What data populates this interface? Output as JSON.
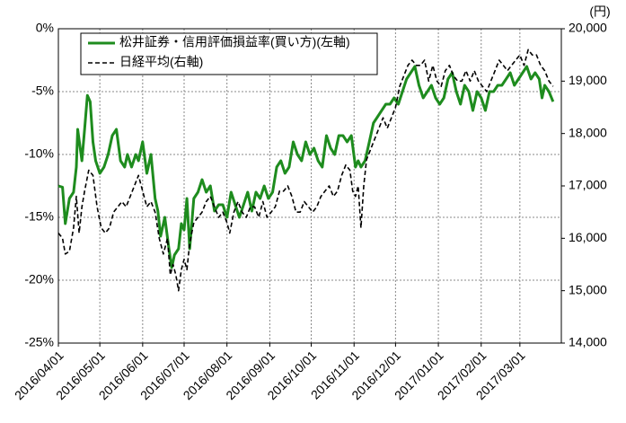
{
  "chart_data": {
    "type": "line",
    "xlim": [
      0,
      364
    ],
    "xticks": [
      {
        "value": 0,
        "label": "2016/04/01"
      },
      {
        "value": 30,
        "label": "2016/05/01"
      },
      {
        "value": 61,
        "label": "2016/06/01"
      },
      {
        "value": 91,
        "label": "2016/07/01"
      },
      {
        "value": 122,
        "label": "2016/08/01"
      },
      {
        "value": 153,
        "label": "2016/09/01"
      },
      {
        "value": 183,
        "label": "2016/10/01"
      },
      {
        "value": 214,
        "label": "2016/11/01"
      },
      {
        "value": 244,
        "label": "2016/12/01"
      },
      {
        "value": 275,
        "label": "2017/01/01"
      },
      {
        "value": 306,
        "label": "2017/02/01"
      },
      {
        "value": 334,
        "label": "2017/03/01"
      }
    ],
    "ylim": [
      -25,
      0
    ],
    "yticks": [
      {
        "value": -25,
        "label": "-25%"
      },
      {
        "value": -20,
        "label": "-20%"
      },
      {
        "value": -15,
        "label": "-15%"
      },
      {
        "value": -10,
        "label": "-10%"
      },
      {
        "value": -5,
        "label": "-5%"
      },
      {
        "value": 0,
        "label": "0%"
      }
    ],
    "y2lim": [
      14000,
      20000
    ],
    "y2ticks": [
      {
        "value": 14000,
        "label": "14,000"
      },
      {
        "value": 15000,
        "label": "15,000"
      },
      {
        "value": 16000,
        "label": "16,000"
      },
      {
        "value": 17000,
        "label": "17,000"
      },
      {
        "value": 18000,
        "label": "18,000"
      },
      {
        "value": 19000,
        "label": "19,000"
      },
      {
        "value": 20000,
        "label": "20,000"
      }
    ],
    "y2label": "(円)",
    "grid": true,
    "legend": "top-left",
    "series": [
      {
        "name": "松井証券・信用評価損益率(買い方)(左軸)",
        "color": "#1e8c1e",
        "dash": false,
        "x": [
          0,
          3,
          5,
          8,
          11,
          13,
          14,
          17,
          19,
          21,
          23,
          25,
          27,
          30,
          33,
          36,
          39,
          42,
          45,
          48,
          50,
          53,
          56,
          58,
          61,
          64,
          67,
          70,
          72,
          74,
          77,
          80,
          82,
          84,
          87,
          89,
          91,
          93,
          95,
          98,
          101,
          104,
          107,
          110,
          113,
          116,
          119,
          122,
          125,
          128,
          131,
          134,
          137,
          140,
          143,
          146,
          149,
          152,
          155,
          158,
          161,
          164,
          167,
          170,
          173,
          176,
          179,
          182,
          185,
          188,
          191,
          194,
          197,
          200,
          203,
          206,
          209,
          212,
          215,
          217,
          219,
          222,
          225,
          228,
          231,
          234,
          237,
          240,
          243,
          246,
          249,
          252,
          255,
          258,
          261,
          264,
          267,
          270,
          273,
          276,
          279,
          282,
          285,
          288,
          291,
          294,
          297,
          300,
          303,
          306,
          309,
          312,
          315,
          318,
          321,
          324,
          327,
          330,
          333,
          336,
          339,
          342,
          345,
          348,
          350,
          352,
          355,
          358
        ],
        "values": [
          -12.5,
          -12.6,
          -15.5,
          -13.5,
          -13,
          -11,
          -8,
          -10.5,
          -8,
          -5.3,
          -5.8,
          -9,
          -10.5,
          -11.5,
          -11,
          -10,
          -8.5,
          -8,
          -10.5,
          -11,
          -10,
          -11,
          -10,
          -10.5,
          -9,
          -11.5,
          -10,
          -13.5,
          -14.5,
          -16.5,
          -15,
          -17.5,
          -19,
          -18,
          -17.5,
          -15.5,
          -16,
          -13.5,
          -17.5,
          -13.5,
          -13,
          -12,
          -13,
          -12.5,
          -14.5,
          -14,
          -14,
          -15,
          -13,
          -14,
          -15,
          -14,
          -13,
          -14.5,
          -13,
          -13.5,
          -12.5,
          -13.5,
          -13,
          -11,
          -10.5,
          -11.5,
          -11,
          -9,
          -10,
          -10.5,
          -9,
          -10,
          -9.5,
          -10.5,
          -11,
          -8.5,
          -9.5,
          -10,
          -8.5,
          -8.5,
          -9,
          -8.5,
          -11,
          -10.5,
          -11,
          -10.5,
          -9,
          -7.5,
          -7,
          -6.5,
          -6,
          -6,
          -5.5,
          -6,
          -5,
          -4,
          -3.5,
          -3,
          -4.5,
          -5.5,
          -5,
          -4.5,
          -5.5,
          -6,
          -5.5,
          -4,
          -3.5,
          -5,
          -6,
          -4.5,
          -5,
          -6.5,
          -5,
          -5.5,
          -6.5,
          -5,
          -5,
          -4.5,
          -4.5,
          -4,
          -3.5,
          -4.5,
          -4,
          -3.5,
          -3,
          -4,
          -3.5,
          -4,
          -5.5,
          -4.5,
          -5,
          -5.8
        ]
      },
      {
        "name": "日経平均(右軸)",
        "color": "#000000",
        "dash": true,
        "axis": "y2",
        "x": [
          0,
          3,
          5,
          8,
          11,
          13,
          15,
          17,
          19,
          22,
          25,
          28,
          31,
          34,
          37,
          40,
          43,
          46,
          49,
          52,
          55,
          58,
          61,
          64,
          67,
          70,
          73,
          76,
          79,
          81,
          83,
          85,
          87,
          89,
          91,
          93,
          95,
          98,
          101,
          104,
          107,
          110,
          113,
          116,
          119,
          122,
          124,
          127,
          130,
          133,
          136,
          139,
          142,
          145,
          148,
          151,
          154,
          157,
          160,
          163,
          166,
          169,
          172,
          175,
          178,
          181,
          184,
          187,
          190,
          193,
          196,
          199,
          202,
          205,
          208,
          211,
          213,
          215,
          217,
          219,
          221,
          223,
          226,
          229,
          232,
          235,
          238,
          241,
          244,
          247,
          250,
          253,
          256,
          259,
          262,
          265,
          268,
          271,
          274,
          277,
          280,
          283,
          286,
          289,
          292,
          295,
          298,
          301,
          304,
          307,
          310,
          313,
          316,
          319,
          322,
          325,
          328,
          331,
          334,
          337,
          340,
          343,
          346,
          349,
          352,
          355,
          358
        ],
        "values": [
          16100,
          16000,
          15700,
          15750,
          16200,
          16800,
          16100,
          16600,
          16900,
          17300,
          17200,
          16600,
          16200,
          16100,
          16200,
          16500,
          16600,
          16700,
          16600,
          16800,
          17000,
          17200,
          16900,
          16600,
          16700,
          16500,
          16000,
          15700,
          16000,
          15300,
          15500,
          15300,
          15000,
          15400,
          15600,
          15400,
          15900,
          16300,
          16400,
          16500,
          16700,
          16800,
          16600,
          16400,
          16500,
          16300,
          16100,
          16500,
          16700,
          16500,
          16400,
          16600,
          16600,
          16400,
          16700,
          16400,
          16500,
          16600,
          16900,
          16900,
          17000,
          16800,
          16500,
          16500,
          16700,
          16600,
          16500,
          16600,
          16800,
          16900,
          17000,
          16800,
          16900,
          17200,
          17400,
          17300,
          16900,
          16800,
          17000,
          16200,
          17000,
          17500,
          17700,
          17900,
          18100,
          18300,
          18100,
          18300,
          18500,
          18900,
          19100,
          19300,
          19400,
          19300,
          19300,
          19400,
          19000,
          19300,
          19000,
          18900,
          19200,
          19300,
          19100,
          19000,
          19000,
          19200,
          19000,
          19200,
          19000,
          18900,
          18800,
          19000,
          19200,
          19400,
          19300,
          19200,
          19300,
          19400,
          19500,
          19300,
          19600,
          19500,
          19500,
          19300,
          19200,
          19000,
          18900
        ]
      }
    ]
  }
}
